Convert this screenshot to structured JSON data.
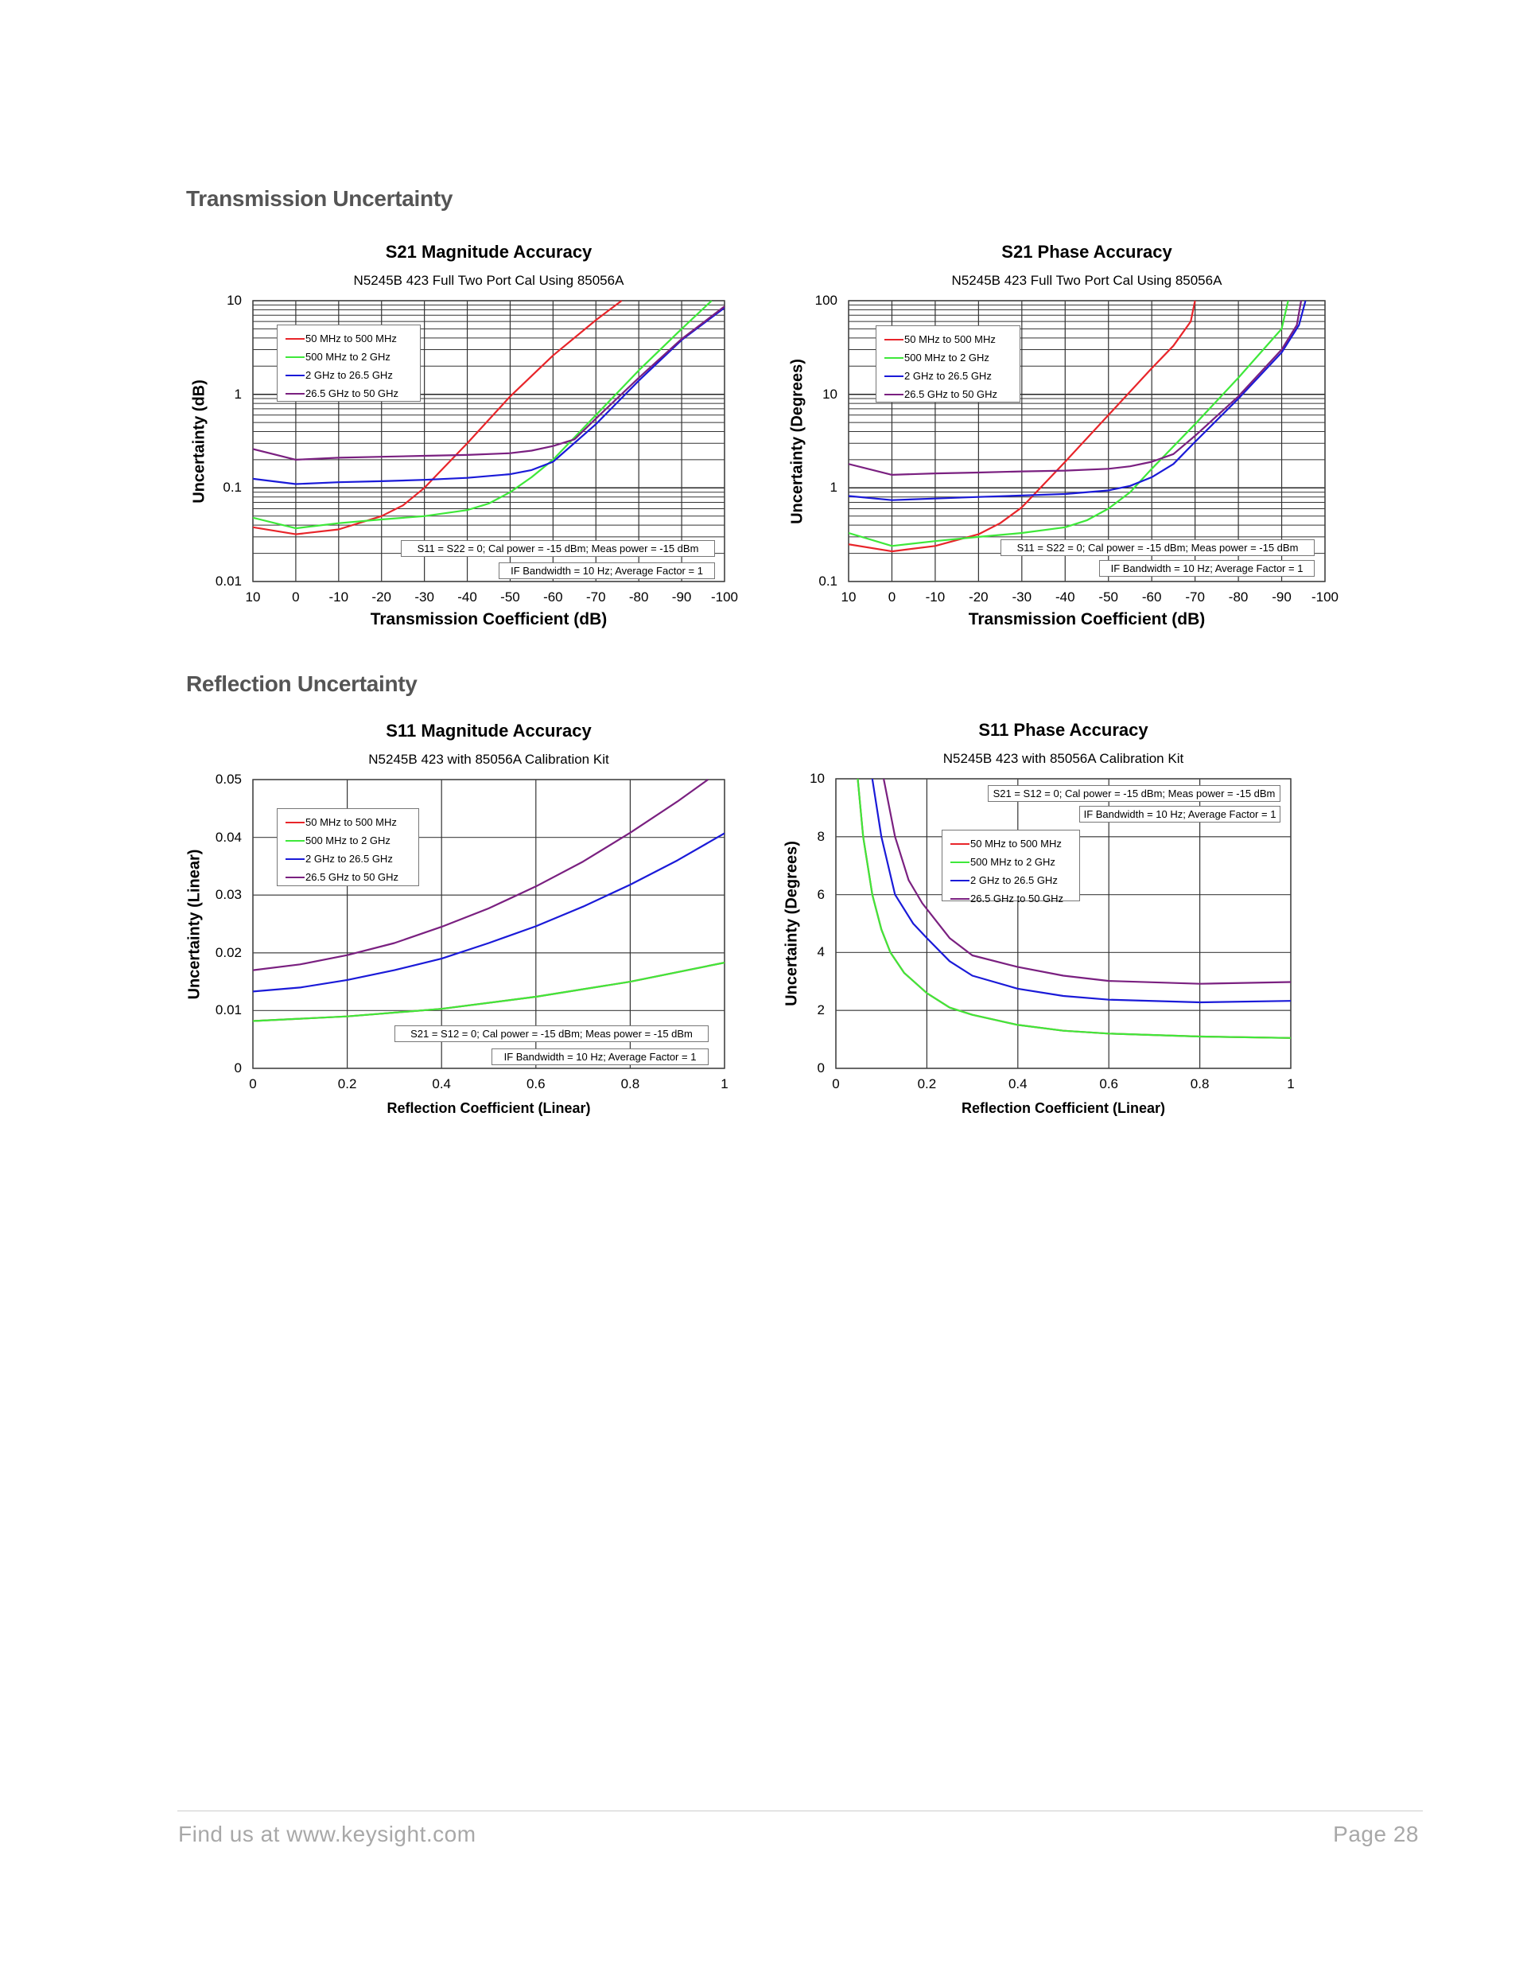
{
  "sections": {
    "transmission": "Transmission Uncertainty",
    "reflection": "Reflection Uncertainty"
  },
  "footer": {
    "link_text": "Find us at www.keysight.com",
    "page": "Page 28"
  },
  "series_colors": {
    "50 MHz to 500 MHz": "#e8252a",
    "500 MHz to 2 GHz": "#3ee83a",
    "2 GHz to 26.5 GHz": "#1a1ad8",
    "26.5 GHz to 50 GHz": "#7a2080"
  },
  "chart_data": [
    {
      "type": "line",
      "title": "S21 Magnitude Accuracy",
      "subtitle": "N5245B 423 Full Two Port Cal Using 85056A",
      "xlabel": "Transmission Coefficient (dB)",
      "ylabel": "Uncertainty (dB)",
      "xlim": [
        10,
        -100
      ],
      "ylim": [
        0.01,
        10
      ],
      "yscale": "log",
      "grid": true,
      "legend_position": "top-left",
      "xticks": [
        "10",
        "0",
        "-10",
        "-20",
        "-30",
        "-40",
        "-50",
        "-60",
        "-70",
        "-80",
        "-90",
        "-100"
      ],
      "yticks": [
        "0.01",
        "0.1",
        "1",
        "10"
      ],
      "notes": [
        "S11 = S22 = 0; Cal power = -15 dBm; Meas power = -15 dBm",
        "IF Bandwidth = 10 Hz; Average Factor = 1"
      ],
      "series": [
        {
          "name": "50 MHz to 500 MHz",
          "x": [
            10,
            0,
            -10,
            -20,
            -25,
            -30,
            -40,
            -50,
            -60,
            -70,
            -76
          ],
          "y": [
            0.038,
            0.032,
            0.036,
            0.05,
            0.065,
            0.1,
            0.3,
            0.95,
            2.6,
            6.2,
            10
          ]
        },
        {
          "name": "500 MHz to 2 GHz",
          "x": [
            10,
            0,
            -10,
            -20,
            -30,
            -40,
            -45,
            -50,
            -55,
            -60,
            -70,
            -80,
            -90,
            -97
          ],
          "y": [
            0.048,
            0.037,
            0.042,
            0.046,
            0.05,
            0.058,
            0.068,
            0.09,
            0.13,
            0.2,
            0.6,
            1.8,
            5,
            10
          ]
        },
        {
          "name": "2 GHz to 26.5 GHz",
          "x": [
            10,
            0,
            -10,
            -20,
            -30,
            -40,
            -50,
            -55,
            -60,
            -70,
            -80,
            -90,
            -100
          ],
          "y": [
            0.125,
            0.11,
            0.115,
            0.118,
            0.122,
            0.128,
            0.14,
            0.155,
            0.19,
            0.48,
            1.4,
            3.8,
            8.4
          ]
        },
        {
          "name": "26.5 GHz to 50 GHz",
          "x": [
            10,
            0,
            -10,
            -20,
            -30,
            -40,
            -50,
            -55,
            -60,
            -65,
            -70,
            -80,
            -90,
            -100
          ],
          "y": [
            0.26,
            0.2,
            0.21,
            0.215,
            0.22,
            0.225,
            0.235,
            0.25,
            0.28,
            0.33,
            0.55,
            1.5,
            3.9,
            8.7
          ]
        }
      ]
    },
    {
      "type": "line",
      "title": "S21 Phase Accuracy",
      "subtitle": "N5245B 423 Full Two Port Cal Using 85056A",
      "xlabel": "Transmission Coefficient (dB)",
      "ylabel": "Uncertainty (Degrees)",
      "xlim": [
        10,
        -100
      ],
      "ylim": [
        0.1,
        100
      ],
      "yscale": "log",
      "grid": true,
      "legend_position": "top-left",
      "xticks": [
        "10",
        "0",
        "-10",
        "-20",
        "-30",
        "-40",
        "-50",
        "-60",
        "-70",
        "-80",
        "-90",
        "-100"
      ],
      "yticks": [
        "0.1",
        "1",
        "10",
        "100"
      ],
      "notes": [
        "S11 = S22 = 0; Cal power = -15 dBm; Meas power = -15 dBm",
        "IF Bandwidth = 10 Hz; Average Factor = 1"
      ],
      "series": [
        {
          "name": "50 MHz to 500 MHz",
          "x": [
            10,
            0,
            -10,
            -20,
            -25,
            -30,
            -40,
            -50,
            -60,
            -65,
            -69,
            -70
          ],
          "y": [
            0.25,
            0.21,
            0.24,
            0.32,
            0.42,
            0.62,
            1.9,
            6,
            19,
            33,
            60,
            100
          ]
        },
        {
          "name": "500 MHz to 2 GHz",
          "x": [
            10,
            0,
            -10,
            -20,
            -30,
            -40,
            -45,
            -50,
            -55,
            -60,
            -70,
            -80,
            -90,
            -91.5
          ],
          "y": [
            0.33,
            0.24,
            0.27,
            0.3,
            0.33,
            0.38,
            0.45,
            0.6,
            0.9,
            1.6,
            4.8,
            15,
            50,
            100
          ]
        },
        {
          "name": "2 GHz to 26.5 GHz",
          "x": [
            10,
            0,
            -10,
            -20,
            -30,
            -40,
            -50,
            -55,
            -60,
            -65,
            -70,
            -80,
            -90,
            -94,
            -95.5
          ],
          "y": [
            0.82,
            0.74,
            0.77,
            0.8,
            0.83,
            0.86,
            0.94,
            1.05,
            1.3,
            1.8,
            3.1,
            9,
            28,
            55,
            100
          ]
        },
        {
          "name": "26.5 GHz to 50 GHz",
          "x": [
            10,
            0,
            -10,
            -20,
            -30,
            -40,
            -50,
            -55,
            -60,
            -65,
            -70,
            -80,
            -90,
            -93.5,
            -94.5
          ],
          "y": [
            1.8,
            1.38,
            1.43,
            1.46,
            1.5,
            1.53,
            1.6,
            1.7,
            1.9,
            2.3,
            3.6,
            9.5,
            30,
            55,
            100
          ]
        }
      ]
    },
    {
      "type": "line",
      "title": "S11 Magnitude Accuracy",
      "subtitle": "N5245B 423 with 85056A Calibration Kit",
      "xlabel": "Reflection Coefficient (Linear)",
      "ylabel": "Uncertainty (Linear)",
      "xlim": [
        0,
        1
      ],
      "ylim": [
        0,
        0.05
      ],
      "yscale": "linear",
      "grid": true,
      "legend_position": "top-left",
      "xticks": [
        "0",
        "0.2",
        "0.4",
        "0.6",
        "0.8",
        "1"
      ],
      "yticks": [
        "0",
        "0.01",
        "0.02",
        "0.03",
        "0.04",
        "0.05"
      ],
      "notes": [
        "S21 = S12 = 0; Cal power = -15 dBm; Meas power = -15 dBm",
        "IF Bandwidth = 10 Hz; Average Factor = 1"
      ],
      "series": [
        {
          "name": "50 MHz to 500 MHz",
          "x": [
            0,
            0.2,
            0.4,
            0.6,
            0.8,
            1
          ],
          "y": [
            0.0082,
            0.009,
            0.0103,
            0.0124,
            0.015,
            0.0183
          ]
        },
        {
          "name": "500 MHz to 2 GHz",
          "x": [
            0,
            0.2,
            0.4,
            0.6,
            0.8,
            1
          ],
          "y": [
            0.0082,
            0.009,
            0.0103,
            0.0124,
            0.015,
            0.0183
          ]
        },
        {
          "name": "2 GHz to 26.5 GHz",
          "x": [
            0,
            0.1,
            0.2,
            0.3,
            0.4,
            0.5,
            0.6,
            0.7,
            0.8,
            0.9,
            1
          ],
          "y": [
            0.0133,
            0.014,
            0.0153,
            0.017,
            0.019,
            0.0217,
            0.0246,
            0.028,
            0.0318,
            0.036,
            0.0407
          ]
        },
        {
          "name": "26.5 GHz to 50 GHz",
          "x": [
            0,
            0.1,
            0.2,
            0.3,
            0.4,
            0.5,
            0.6,
            0.7,
            0.8,
            0.9,
            0.965
          ],
          "y": [
            0.017,
            0.018,
            0.0196,
            0.0217,
            0.0245,
            0.0277,
            0.0315,
            0.0358,
            0.0408,
            0.0462,
            0.05
          ]
        }
      ]
    },
    {
      "type": "line",
      "title": "S11 Phase Accuracy",
      "subtitle": "N5245B 423 with 85056A Calibration Kit",
      "xlabel": "Reflection Coefficient (Linear)",
      "ylabel": "Uncertainty (Degrees)",
      "xlim": [
        0,
        1
      ],
      "ylim": [
        0,
        10
      ],
      "yscale": "linear",
      "grid": true,
      "legend_position": "center",
      "xticks": [
        "0",
        "0.2",
        "0.4",
        "0.6",
        "0.8",
        "1"
      ],
      "yticks": [
        "0",
        "2",
        "4",
        "6",
        "8",
        "10"
      ],
      "notes": [
        "S21 = S12 = 0; Cal power = -15 dBm; Meas power = -15 dBm",
        "IF Bandwidth = 10 Hz; Average Factor = 1"
      ],
      "series": [
        {
          "name": "50 MHz to 500 MHz",
          "x": [
            0.048,
            0.06,
            0.08,
            0.1,
            0.12,
            0.15,
            0.2,
            0.25,
            0.3,
            0.4,
            0.5,
            0.6,
            0.8,
            1
          ],
          "y": [
            10,
            8,
            6,
            4.8,
            4,
            3.3,
            2.6,
            2.1,
            1.85,
            1.5,
            1.3,
            1.2,
            1.1,
            1.05
          ]
        },
        {
          "name": "500 MHz to 2 GHz",
          "x": [
            0.048,
            0.06,
            0.08,
            0.1,
            0.12,
            0.15,
            0.2,
            0.25,
            0.3,
            0.4,
            0.5,
            0.6,
            0.8,
            1
          ],
          "y": [
            10,
            8,
            6,
            4.8,
            4,
            3.3,
            2.6,
            2.1,
            1.85,
            1.5,
            1.3,
            1.2,
            1.1,
            1.05
          ]
        },
        {
          "name": "2 GHz to 26.5 GHz",
          "x": [
            0.08,
            0.1,
            0.13,
            0.17,
            0.2,
            0.25,
            0.3,
            0.4,
            0.5,
            0.6,
            0.8,
            1
          ],
          "y": [
            10,
            8,
            6,
            5,
            4.5,
            3.7,
            3.2,
            2.75,
            2.5,
            2.37,
            2.28,
            2.33
          ]
        },
        {
          "name": "26.5 GHz to 50 GHz",
          "x": [
            0.105,
            0.13,
            0.16,
            0.19,
            0.25,
            0.3,
            0.4,
            0.5,
            0.6,
            0.8,
            1
          ],
          "y": [
            10,
            8,
            6.5,
            5.7,
            4.5,
            3.9,
            3.5,
            3.2,
            3.02,
            2.92,
            2.98
          ]
        }
      ]
    }
  ]
}
